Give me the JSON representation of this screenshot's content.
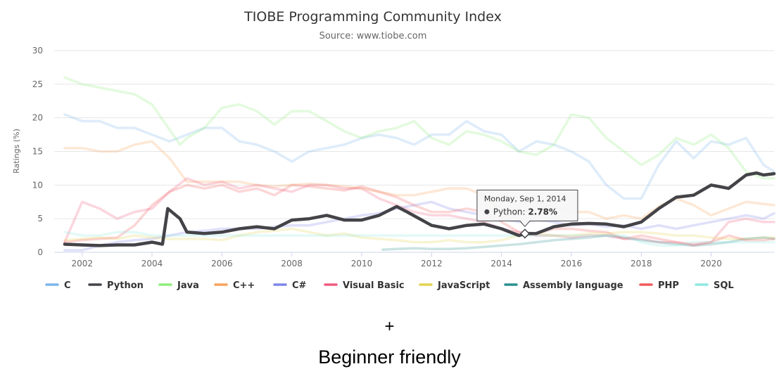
{
  "chart_data": {
    "type": "line",
    "title": "TIOBE Programming Community Index",
    "subtitle": "Source: www.tiobe.com",
    "ylabel": "Ratings (%)",
    "xlabel": "",
    "ylim": [
      0,
      30
    ],
    "xlim": [
      2001.2,
      2021.8
    ],
    "yticks": [
      0,
      5,
      10,
      15,
      20,
      25,
      30
    ],
    "xticks": [
      2002,
      2004,
      2006,
      2008,
      2010,
      2012,
      2014,
      2016,
      2018,
      2020
    ],
    "grid": true,
    "legend": "bottom",
    "highlighted_series": "Python",
    "tooltip": {
      "date": "Monday, Sep 1, 2014",
      "series": "Python",
      "value": "2.78%",
      "x": 2014.67,
      "y": 2.78
    },
    "series": [
      {
        "name": "C",
        "color": "#7cb5ec",
        "x": [
          2001.5,
          2002,
          2002.5,
          2003,
          2003.5,
          2004,
          2004.5,
          2005,
          2005.5,
          2006,
          2006.5,
          2007,
          2007.5,
          2008,
          2008.5,
          2009,
          2009.5,
          2010,
          2010.5,
          2011,
          2011.5,
          2012,
          2012.5,
          2013,
          2013.5,
          2014,
          2014.5,
          2015,
          2015.5,
          2016,
          2016.5,
          2017,
          2017.5,
          2018,
          2018.5,
          2019,
          2019.5,
          2020,
          2020.5,
          2021,
          2021.5,
          2021.8
        ],
        "values": [
          20.5,
          19.5,
          19.5,
          18.5,
          18.5,
          17.5,
          16.5,
          17.5,
          18.5,
          18.5,
          16.5,
          16,
          15,
          13.5,
          15,
          15.5,
          16,
          17,
          17.5,
          17,
          16,
          17.5,
          17.5,
          19.5,
          18,
          17.5,
          15,
          16.5,
          16,
          15,
          13.5,
          10,
          8,
          8,
          13,
          16.5,
          14,
          16.5,
          16,
          17,
          13,
          12
        ]
      },
      {
        "name": "Python",
        "color": "#434348",
        "x": [
          2001.5,
          2002,
          2002.5,
          2003,
          2003.5,
          2004,
          2004.3,
          2004.45,
          2004.8,
          2005,
          2005.5,
          2006,
          2006.5,
          2007,
          2007.5,
          2008,
          2008.5,
          2009,
          2009.5,
          2010,
          2010.5,
          2011,
          2011.3,
          2012,
          2012.5,
          2013,
          2013.5,
          2014,
          2014.5,
          2014.67,
          2015,
          2015.5,
          2016,
          2016.5,
          2017,
          2017.5,
          2018,
          2018.5,
          2019,
          2019.5,
          2020,
          2020.5,
          2021,
          2021.3,
          2021.5,
          2021.8
        ],
        "values": [
          1.2,
          1.1,
          1,
          1.1,
          1.1,
          1.5,
          1.2,
          6.5,
          5,
          3,
          2.8,
          3,
          3.5,
          3.8,
          3.5,
          4.8,
          5,
          5.5,
          4.8,
          4.8,
          5.5,
          6.8,
          6,
          4,
          3.5,
          4,
          4.2,
          3.5,
          2.5,
          2.78,
          2.8,
          3.8,
          4.2,
          4.3,
          4.2,
          3.8,
          4.5,
          6.5,
          8.2,
          8.5,
          10,
          9.5,
          11.5,
          11.8,
          11.5,
          11.7
        ]
      },
      {
        "name": "Java",
        "color": "#90ed7d",
        "x": [
          2001.5,
          2002,
          2002.5,
          2003,
          2003.5,
          2004,
          2004.4,
          2004.8,
          2005,
          2005.5,
          2006,
          2006.5,
          2007,
          2007.5,
          2008,
          2008.5,
          2009,
          2009.5,
          2010,
          2010.5,
          2011,
          2011.5,
          2012,
          2012.5,
          2013,
          2013.5,
          2014,
          2014.5,
          2015,
          2015.5,
          2016,
          2016.5,
          2017,
          2017.5,
          2018,
          2018.5,
          2019,
          2019.5,
          2020,
          2020.5,
          2021,
          2021.5,
          2021.8
        ],
        "values": [
          26,
          25,
          24.5,
          24,
          23.5,
          22,
          19,
          16,
          17,
          18.5,
          21.5,
          22,
          21,
          19,
          21,
          21,
          19.5,
          18,
          17,
          18,
          18.5,
          19.5,
          17,
          16,
          18,
          17.5,
          16.5,
          15,
          14.5,
          16,
          20.5,
          20,
          17,
          15,
          13,
          14.5,
          17,
          16,
          17.5,
          15.5,
          12,
          11,
          11
        ]
      },
      {
        "name": "C++",
        "color": "#f7a35c",
        "x": [
          2001.5,
          2002,
          2002.5,
          2003,
          2003.5,
          2004,
          2004.5,
          2005,
          2005.5,
          2006,
          2006.5,
          2007,
          2007.5,
          2008,
          2008.5,
          2009,
          2009.5,
          2010,
          2010.5,
          2011,
          2011.5,
          2012,
          2012.5,
          2013,
          2013.5,
          2014,
          2014.5,
          2015,
          2015.5,
          2016,
          2016.5,
          2017,
          2017.5,
          2018,
          2018.5,
          2019,
          2019.5,
          2020,
          2020.5,
          2021,
          2021.5,
          2021.8
        ],
        "values": [
          15.5,
          15.5,
          15,
          15,
          16,
          16.5,
          14,
          10.5,
          10.5,
          10.5,
          10.5,
          10,
          9.8,
          10,
          10.2,
          10,
          9.8,
          9.5,
          9,
          8.5,
          8.5,
          9,
          9.5,
          9.5,
          8.5,
          6,
          5.5,
          7,
          6.8,
          6,
          6,
          5,
          5.5,
          5,
          6.8,
          8,
          7,
          5.5,
          6.5,
          7.5,
          7.2,
          7
        ]
      },
      {
        "name": "C#",
        "color": "#8085e9",
        "x": [
          2001.5,
          2002,
          2002.5,
          2003,
          2003.5,
          2004,
          2004.5,
          2005,
          2005.5,
          2006,
          2006.5,
          2007,
          2007.5,
          2008,
          2008.5,
          2009,
          2009.5,
          2010,
          2010.5,
          2011,
          2011.5,
          2012,
          2012.5,
          2013,
          2013.5,
          2014,
          2014.5,
          2015,
          2015.5,
          2016,
          2016.5,
          2017,
          2017.5,
          2018,
          2018.5,
          2019,
          2019.5,
          2020,
          2020.5,
          2021,
          2021.5,
          2021.8
        ],
        "values": [
          0.3,
          0.3,
          1,
          1.5,
          1.8,
          2,
          2.5,
          3,
          3.2,
          3.5,
          3.5,
          3.5,
          3.8,
          4,
          4,
          4.5,
          5,
          5.5,
          5.8,
          6.5,
          7,
          7.5,
          6.5,
          6,
          5.5,
          5,
          4.5,
          4.8,
          4.5,
          4,
          4.2,
          3.8,
          4,
          3.5,
          4,
          3.5,
          4,
          4.5,
          5,
          5.5,
          5,
          5.8
        ]
      },
      {
        "name": "Visual Basic",
        "color": "#f15c80",
        "x": [
          2001.5,
          2002,
          2002.5,
          2003,
          2003.5,
          2004,
          2004.5,
          2005,
          2005.5,
          2006,
          2006.5,
          2007,
          2007.5,
          2008,
          2008.5,
          2009,
          2009.5,
          2010,
          2010.5,
          2011,
          2011.5,
          2012,
          2012.5,
          2013,
          2013.5,
          2014,
          2014.5,
          2015,
          2015.5,
          2016,
          2016.5,
          2017,
          2017.5,
          2018,
          2018.5,
          2019,
          2019.5,
          2020,
          2020.5,
          2021,
          2021.5,
          2021.8
        ],
        "values": [
          1.5,
          7.5,
          6.5,
          5,
          6,
          6.5,
          9,
          11,
          10,
          10.5,
          9.5,
          10,
          9.5,
          9,
          10,
          10,
          9.5,
          9.5,
          8,
          7,
          6,
          5.5,
          5.5,
          5,
          4.5,
          3.5,
          3,
          2.5,
          2.5,
          2.2,
          2.5,
          2.5,
          2,
          2,
          1.5,
          1.5,
          1,
          1.5,
          4.5,
          5,
          4.5,
          4.5
        ]
      },
      {
        "name": "JavaScript",
        "color": "#e4d354",
        "x": [
          2001.5,
          2002,
          2002.5,
          2003,
          2003.5,
          2004,
          2004.5,
          2005,
          2005.5,
          2006,
          2006.5,
          2007,
          2007.5,
          2008,
          2008.5,
          2009,
          2009.5,
          2010,
          2010.5,
          2011,
          2011.5,
          2012,
          2012.5,
          2013,
          2013.5,
          2014,
          2014.5,
          2015,
          2015.5,
          2016,
          2016.5,
          2017,
          2017.5,
          2018,
          2018.5,
          2019,
          2019.5,
          2020,
          2020.5,
          2021,
          2021.5,
          2021.8
        ],
        "values": [
          1.8,
          2,
          2.2,
          2,
          2.5,
          2.2,
          2,
          2,
          2,
          1.8,
          2.5,
          3,
          3.2,
          3.5,
          3,
          2.5,
          2.8,
          2.2,
          2,
          1.8,
          1.5,
          1.5,
          1.8,
          1.5,
          1.5,
          1.8,
          2.5,
          2.8,
          2.5,
          2.5,
          2.8,
          2.8,
          3,
          3,
          2.8,
          2.5,
          2.5,
          2.2,
          2,
          2,
          2.2,
          2.2
        ]
      },
      {
        "name": "Assembly language",
        "color": "#2b908f",
        "x": [
          2010.6,
          2011,
          2011.5,
          2012,
          2012.5,
          2013,
          2013.5,
          2014,
          2014.5,
          2015,
          2015.5,
          2016,
          2016.5,
          2017,
          2017.5,
          2018,
          2018.5,
          2019,
          2019.5,
          2020,
          2020.5,
          2021,
          2021.5,
          2021.8
        ],
        "values": [
          0.4,
          0.5,
          0.6,
          0.5,
          0.5,
          0.6,
          0.8,
          1,
          1.2,
          1.5,
          1.8,
          2,
          2.2,
          2.5,
          2.2,
          1.8,
          1.5,
          1.2,
          1,
          1.2,
          1.5,
          2,
          2.2,
          2
        ]
      },
      {
        "name": "PHP",
        "color": "#f45b5b",
        "x": [
          2001.5,
          2002,
          2002.5,
          2003,
          2003.5,
          2004,
          2004.5,
          2005,
          2005.5,
          2006,
          2006.5,
          2007,
          2007.5,
          2008,
          2008.5,
          2009,
          2009.5,
          2010,
          2010.5,
          2011,
          2011.5,
          2012,
          2012.5,
          2013,
          2013.5,
          2014,
          2014.5,
          2015,
          2015.5,
          2016,
          2016.5,
          2017,
          2017.5,
          2018,
          2018.5,
          2019,
          2019.5,
          2020,
          2020.5,
          2021,
          2021.5,
          2021.8
        ],
        "values": [
          1.5,
          1.8,
          2,
          2.2,
          4,
          7,
          9,
          10,
          9.5,
          10,
          9,
          9.5,
          8.5,
          10,
          9.8,
          9.5,
          9.2,
          9.8,
          9,
          8.2,
          7,
          6,
          6,
          6.5,
          6,
          4.5,
          3,
          2.8,
          3.5,
          3.5,
          3.2,
          3,
          2,
          2.5,
          2,
          1.5,
          1.2,
          1.5,
          2.5,
          1.8,
          1.8,
          2
        ]
      },
      {
        "name": "SQL",
        "color": "#91e8e1",
        "x": [
          2001.5,
          2002,
          2002.5,
          2003,
          2003.5,
          2004,
          2004.5,
          2005,
          2005.5,
          2006,
          2006.5,
          2007,
          2007.5,
          2008,
          2008.5,
          2009,
          2009.5,
          2010,
          2010.5,
          2011,
          2011.5,
          2012,
          2012.5,
          2013,
          2013.5,
          2014,
          2014.5,
          2015,
          2015.5,
          2016,
          2016.5,
          2017,
          2017.5,
          2018,
          2018.5,
          2019,
          2019.5,
          2020,
          2020.5,
          2021,
          2021.5,
          2021.8
        ],
        "values": [
          3,
          2.5,
          2.5,
          3,
          3,
          2.5,
          2.5,
          2.5,
          2.5,
          2.5,
          2.5,
          2.5,
          2.5,
          2.5,
          2.5,
          2.5,
          2.5,
          2.5,
          2.5,
          2.5,
          2.5,
          2.5,
          2.5,
          2.5,
          2.5,
          2.5,
          2.5,
          2.5,
          2.5,
          2.5,
          2.5,
          2.5,
          2.5,
          1.5,
          1,
          1,
          1.5,
          1.5,
          1.5,
          1.5,
          1.5,
          1.5
        ]
      }
    ]
  },
  "footer": {
    "plus": "+",
    "caption": "Beginner friendly"
  }
}
